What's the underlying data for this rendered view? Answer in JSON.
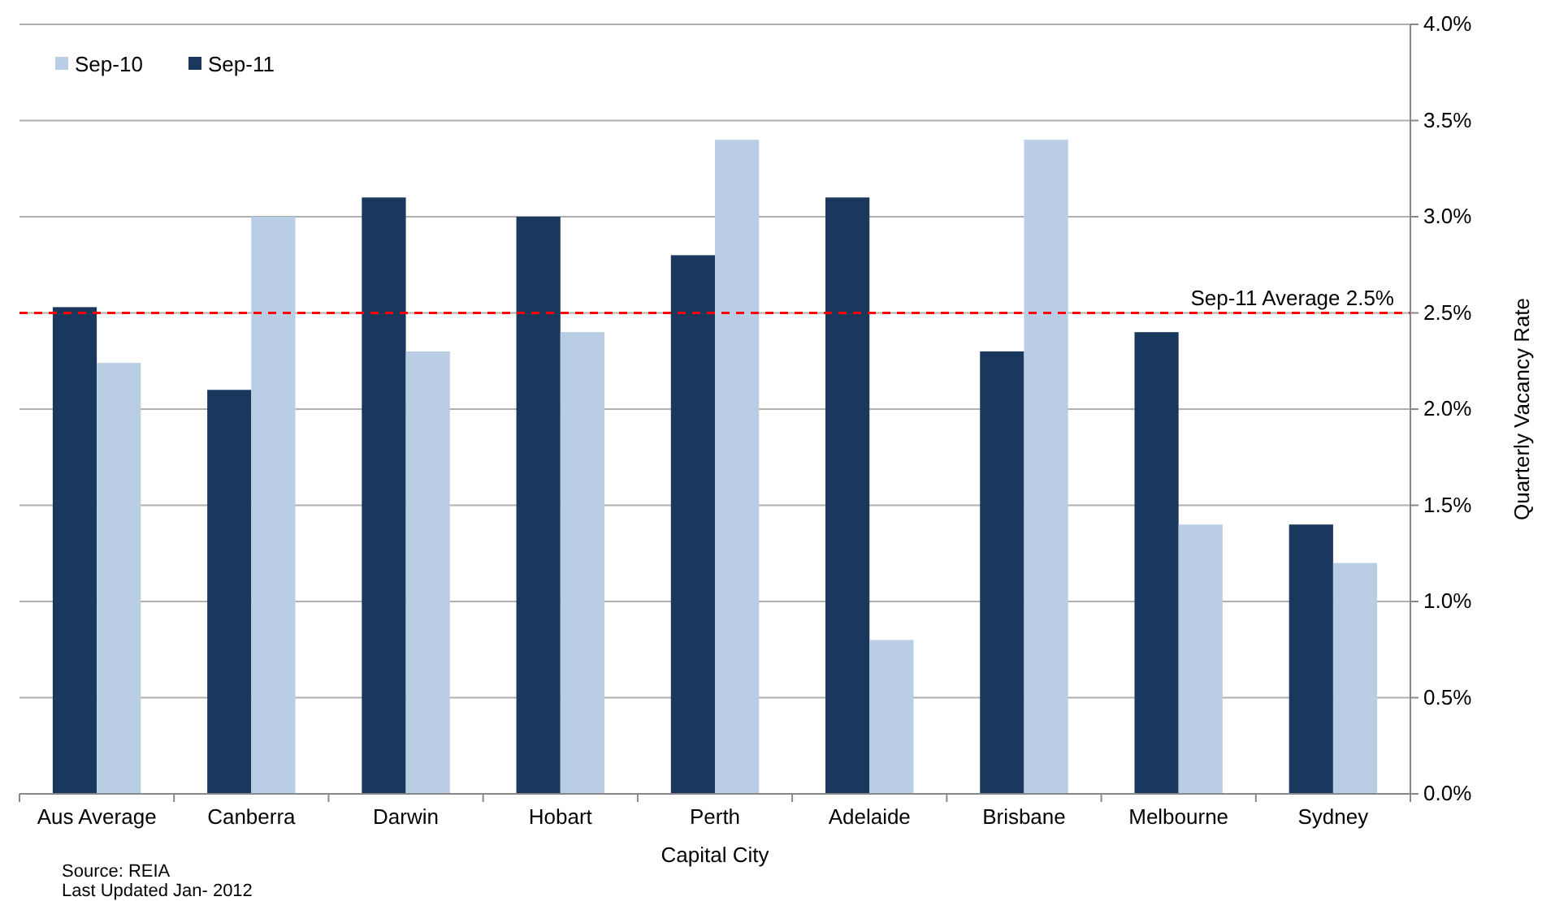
{
  "chart_data": {
    "type": "bar",
    "categories": [
      "Aus Average",
      "Canberra",
      "Darwin",
      "Hobart",
      "Perth",
      "Adelaide",
      "Brisbane",
      "Melbourne",
      "Sydney"
    ],
    "series": [
      {
        "name": "Sep-11",
        "color": "#1a375e",
        "values": [
          2.53,
          2.1,
          3.1,
          3.0,
          2.8,
          3.1,
          2.3,
          2.4,
          1.4
        ]
      },
      {
        "name": "Sep-10",
        "color": "#b9cde4",
        "values": [
          2.24,
          3.0,
          2.3,
          2.4,
          3.4,
          0.8,
          3.4,
          1.4,
          1.2
        ]
      }
    ],
    "xlabel": "Capital City",
    "ylabel": "Quarterly Vacancy Rate",
    "ylim": [
      0,
      4
    ],
    "yticks": [
      {
        "value": 0,
        "label": "0.0%"
      },
      {
        "value": 0.5,
        "label": "0.5%"
      },
      {
        "value": 1,
        "label": "1.0%"
      },
      {
        "value": 1.5,
        "label": "1.5%"
      },
      {
        "value": 2,
        "label": "2.0%"
      },
      {
        "value": 2.5,
        "label": "2.5%"
      },
      {
        "value": 3,
        "label": "3.0%"
      },
      {
        "value": 3.5,
        "label": "3.5%"
      },
      {
        "value": 4,
        "label": "4.0%"
      }
    ],
    "ref_lines": [
      {
        "axis": "y",
        "value": 2.5,
        "label": "Sep-11 Average 2.5%",
        "color": "#ff0000",
        "line_style": "dashed"
      }
    ],
    "grid": "y",
    "legend": "top left",
    "annotations": [
      "Source: REIA",
      "Last Updated Jan- 2012"
    ]
  }
}
